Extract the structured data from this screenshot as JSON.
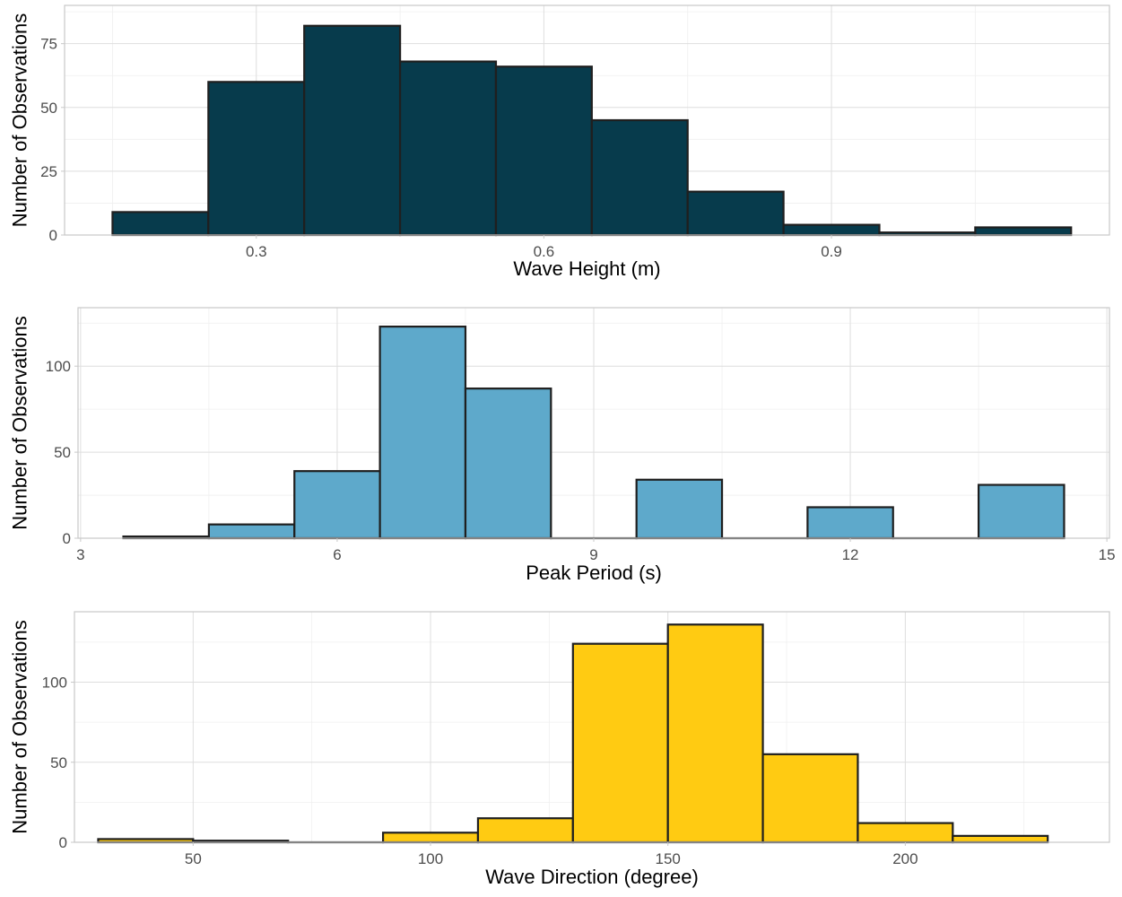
{
  "chart_data": [
    {
      "type": "bar",
      "subtype": "histogram",
      "title": "",
      "xlabel": "Wave Height (m)",
      "ylabel": "Number of Observations",
      "fill": "#073B4C",
      "bin_edges": [
        0.15,
        0.25,
        0.35,
        0.45,
        0.55,
        0.65,
        0.75,
        0.85,
        0.95,
        1.05,
        1.15
      ],
      "values": [
        9,
        60,
        82,
        68,
        66,
        45,
        17,
        4,
        1,
        3
      ],
      "xlim": [
        0.1,
        1.19
      ],
      "ylim": [
        0,
        90
      ],
      "xticks": [
        0.3,
        0.6,
        0.9
      ],
      "xtick_labels": [
        "0.3",
        "0.6",
        "0.9"
      ],
      "yticks": [
        0,
        25,
        50,
        75
      ],
      "ytick_labels": [
        "0",
        "25",
        "50",
        "75"
      ],
      "grid": true,
      "legend": "none"
    },
    {
      "type": "bar",
      "subtype": "histogram",
      "title": "",
      "xlabel": "Peak Period (s)",
      "ylabel": "Number of Observations",
      "fill": "#5EA9CB",
      "bin_edges": [
        3.5,
        4.5,
        5.5,
        6.5,
        7.5,
        8.5,
        9.5,
        10.5,
        11.5,
        12.5,
        13.5,
        14.5
      ],
      "values": [
        1,
        8,
        39,
        123,
        87,
        0,
        34,
        0,
        18,
        0,
        31
      ],
      "xlim": [
        2.97,
        15.03
      ],
      "ylim": [
        0,
        134
      ],
      "xticks": [
        3,
        6,
        9,
        12,
        15
      ],
      "xtick_labels": [
        "3",
        "6",
        "9",
        "12",
        "15"
      ],
      "yticks": [
        0,
        50,
        100
      ],
      "ytick_labels": [
        "0",
        "50",
        "100"
      ],
      "grid": true,
      "legend": "none"
    },
    {
      "type": "bar",
      "subtype": "histogram",
      "title": "",
      "xlabel": "Wave Direction (degree)",
      "ylabel": "Number of Observations",
      "fill": "#FFCB12",
      "bin_edges": [
        30,
        50,
        70,
        90,
        110,
        130,
        150,
        170,
        190,
        210,
        230
      ],
      "values": [
        2,
        1,
        0,
        6,
        15,
        124,
        136,
        55,
        12,
        4
      ],
      "xlim": [
        25,
        243
      ],
      "ylim": [
        0,
        144
      ],
      "xticks": [
        50,
        100,
        150,
        200
      ],
      "xtick_labels": [
        "50",
        "100",
        "150",
        "200"
      ],
      "yticks": [
        0,
        50,
        100
      ],
      "ytick_labels": [
        "0",
        "50",
        "100"
      ],
      "grid": true,
      "legend": "none"
    }
  ]
}
